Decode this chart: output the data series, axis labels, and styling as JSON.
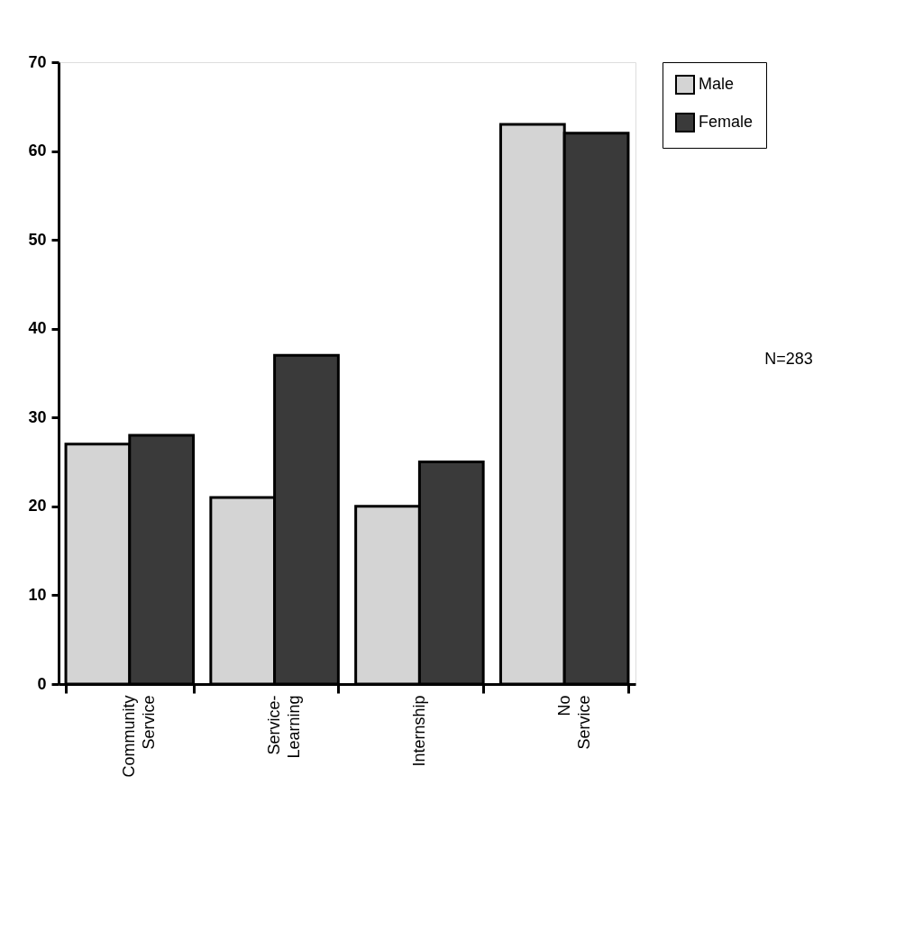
{
  "chart_data": {
    "type": "bar",
    "categories": [
      "Community Service",
      "Service-Learning",
      "Internship",
      "No Service"
    ],
    "series": [
      {
        "name": "Male",
        "color": "#d4d4d4",
        "values": [
          27,
          21,
          20,
          63
        ]
      },
      {
        "name": "Female",
        "color": "#3a3a3a",
        "values": [
          28,
          37,
          25,
          62
        ]
      }
    ],
    "ylim": [
      0,
      70
    ],
    "yticks": [
      0,
      10,
      20,
      30,
      40,
      50,
      60,
      70
    ],
    "grid": false,
    "legend": "right",
    "annotations": [
      "N=283"
    ]
  }
}
